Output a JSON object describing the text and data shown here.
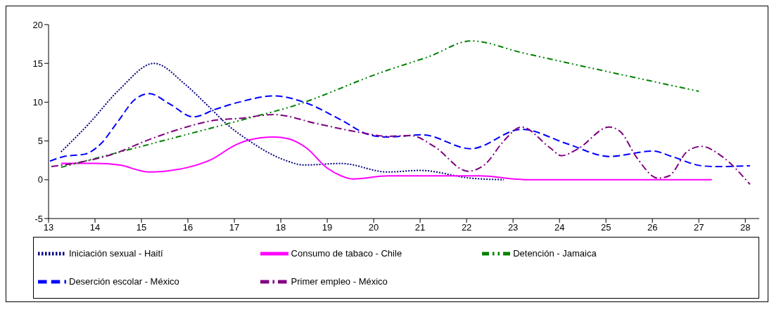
{
  "chart_data": {
    "type": "line",
    "xlim": [
      13,
      28.3
    ],
    "xticks": [
      13,
      14,
      15,
      16,
      17,
      18,
      19,
      20,
      21,
      22,
      23,
      24,
      25,
      26,
      27,
      28
    ],
    "ylim": [
      -5,
      20
    ],
    "yticks": [
      -5,
      0,
      5,
      10,
      15,
      20
    ],
    "grid": false,
    "legend": "bottom",
    "marker": "none",
    "series": [
      {
        "name": "Iniciación sexual - Haití",
        "color": "#000080",
        "line_style": "dotted",
        "x": [
          13.27,
          13.85,
          14.52,
          15.27,
          15.94,
          16.42,
          16.87,
          17.25,
          18.1,
          18.5,
          19.3,
          20.3,
          21.0,
          22.1,
          22.8
        ],
        "values": [
          3.6,
          7.1,
          11.6,
          15,
          12.3,
          9.6,
          7.0,
          5.3,
          2.5,
          1.9,
          2.1,
          1.0,
          1.2,
          0.2,
          0
        ]
      },
      {
        "name": "Consumo de tabaco - Chile",
        "color": "#ff00ff",
        "line_style": "solid",
        "x": [
          13.27,
          14.03,
          14.52,
          15.17,
          16.0,
          16.5,
          17.03,
          17.3,
          17.85,
          18.15,
          18.55,
          19.0,
          19.3,
          19.55,
          20.3,
          22.28,
          23.03,
          23.28,
          27.28
        ],
        "values": [
          2.1,
          2.1,
          1.9,
          1.0,
          1.6,
          2.6,
          4.5,
          5.1,
          5.5,
          5.3,
          4.1,
          1.5,
          0.5,
          0.1,
          0.5,
          0.5,
          0.1,
          0,
          0
        ]
      },
      {
        "name": "Detención - Jamaica",
        "color": "#008000",
        "line_style": "dashdotdot",
        "x": [
          13.27,
          15.57,
          17.6,
          18.1,
          20.24,
          21.2,
          22.1,
          23.18,
          25.99,
          27.0
        ],
        "values": [
          1.6,
          5.2,
          8.4,
          9.2,
          14.0,
          15.9,
          17.9,
          16.4,
          12.7,
          11.4
        ]
      },
      {
        "name": "Deserción escolar - México",
        "color": "#0000ff",
        "line_style": "dashed",
        "x": [
          13.03,
          13.33,
          13.78,
          14.12,
          14.48,
          14.87,
          15.17,
          15.6,
          16.12,
          16.6,
          17.1,
          17.85,
          18.5,
          19.3,
          19.9,
          20.3,
          21.04,
          22.09,
          23.18,
          24.18,
          25.07,
          26.01,
          26.42,
          27.06,
          27.36,
          28.1
        ],
        "values": [
          2.4,
          3.0,
          3.3,
          4.6,
          7.4,
          10.4,
          11.1,
          9.8,
          8.1,
          9.1,
          10.0,
          10.8,
          10.0,
          7.7,
          5.8,
          5.5,
          5.8,
          4.0,
          6.5,
          4.6,
          3.0,
          3.7,
          3.0,
          1.8,
          1.7,
          1.8
        ]
      },
      {
        "name": "Primer empleo - México",
        "color": "#800080",
        "line_style": "dashdot",
        "x": [
          13.06,
          13.63,
          14.33,
          15.22,
          15.97,
          16.61,
          17.1,
          17.85,
          18.8,
          19.8,
          20.3,
          20.8,
          21.3,
          22.03,
          22.4,
          22.8,
          23.18,
          23.8,
          24.04,
          24.4,
          25.07,
          25.31,
          25.67,
          26.12,
          26.36,
          26.76,
          27.06,
          27.5,
          28.1
        ],
        "values": [
          1.7,
          2.2,
          3.2,
          5.3,
          6.8,
          7.7,
          7.9,
          8.4,
          7.2,
          6.0,
          5.6,
          5.7,
          4.3,
          1.1,
          2.0,
          5.0,
          6.8,
          4.1,
          3.1,
          4.0,
          6.8,
          6.2,
          2.8,
          0.2,
          0.5,
          3.7,
          4.3,
          3.0,
          -0.6
        ]
      }
    ]
  }
}
